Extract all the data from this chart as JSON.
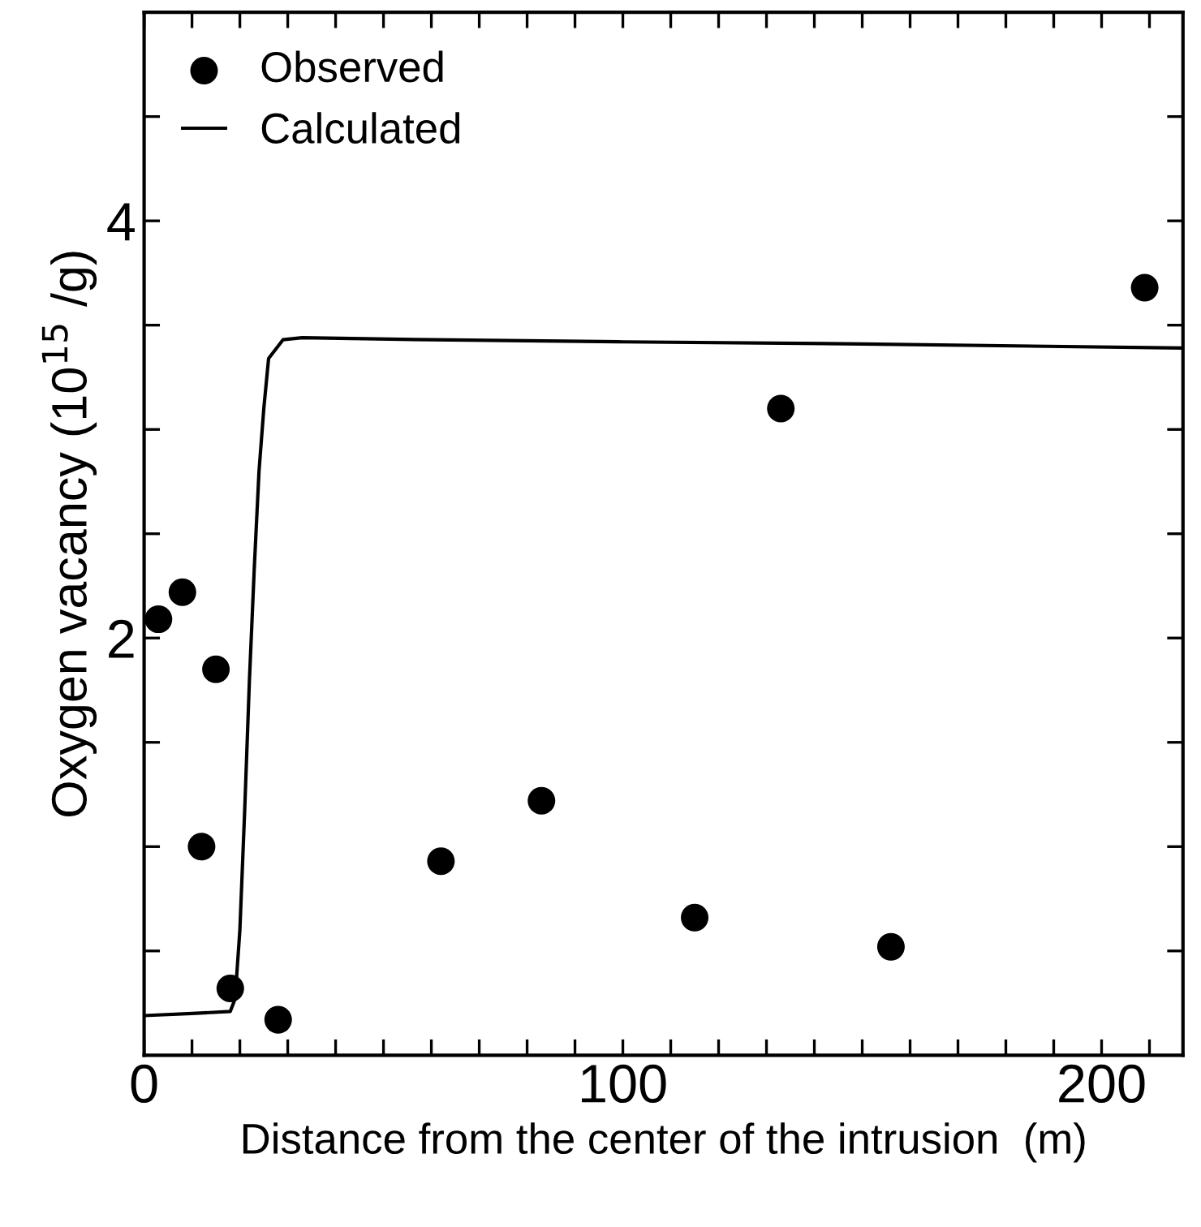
{
  "chart_data": {
    "type": "scatter",
    "xlabel": "Distance from the center of the intrusion  (m)",
    "ylabel": "Oxygen vacancy (10$^{15}$ /g)",
    "xlim": [
      0,
      217
    ],
    "ylim": [
      0,
      5
    ],
    "xticks": [
      0,
      {
        "value": 10,
        "label": null
      },
      {
        "value": 20,
        "label": null
      },
      {
        "value": 30,
        "label": null
      },
      {
        "value": 40,
        "label": null
      },
      {
        "value": 50,
        "label": null
      },
      {
        "value": 60,
        "label": null
      },
      {
        "value": 70,
        "label": null
      },
      {
        "value": 80,
        "label": null
      },
      {
        "value": 90,
        "label": null
      },
      100,
      {
        "value": 110,
        "label": null
      },
      {
        "value": 120,
        "label": null
      },
      {
        "value": 130,
        "label": null
      },
      {
        "value": 140,
        "label": null
      },
      {
        "value": 150,
        "label": null
      },
      {
        "value": 160,
        "label": null
      },
      {
        "value": 170,
        "label": null
      },
      {
        "value": 180,
        "label": null
      },
      {
        "value": 190,
        "label": null
      },
      200,
      {
        "value": 210,
        "label": null
      }
    ],
    "yticks": [
      {
        "value": 0.5,
        "label": null
      },
      {
        "value": 1,
        "label": null
      },
      {
        "value": 1.5,
        "label": null
      },
      2,
      {
        "value": 2.5,
        "label": null
      },
      {
        "value": 3,
        "label": null
      },
      {
        "value": 3.5,
        "label": null
      },
      4,
      {
        "value": 4.5,
        "label": null
      }
    ],
    "grid": false,
    "legend": "top left",
    "series": [
      {
        "name": "Observed",
        "marker": "circle",
        "color": "#000000",
        "x": [
          3,
          8,
          15,
          12,
          18,
          28,
          62,
          83,
          115,
          156,
          133,
          209
        ],
        "values": [
          2.09,
          2.22,
          1.85,
          1.0,
          0.32,
          0.17,
          0.93,
          1.22,
          0.66,
          0.52,
          3.1,
          3.68
        ]
      },
      {
        "name": "Calculated",
        "type": "line",
        "marker": "none",
        "line_style": "solid",
        "color": "#000000",
        "x": [
          0,
          10,
          18,
          19,
          20,
          21,
          22,
          23,
          24,
          25,
          26,
          29,
          33,
          60,
          100,
          150,
          217
        ],
        "values": [
          0.19,
          0.2,
          0.21,
          0.27,
          0.6,
          1.17,
          1.8,
          2.33,
          2.8,
          3.1,
          3.34,
          3.43,
          3.44,
          3.43,
          3.42,
          3.41,
          3.39
        ]
      }
    ]
  }
}
